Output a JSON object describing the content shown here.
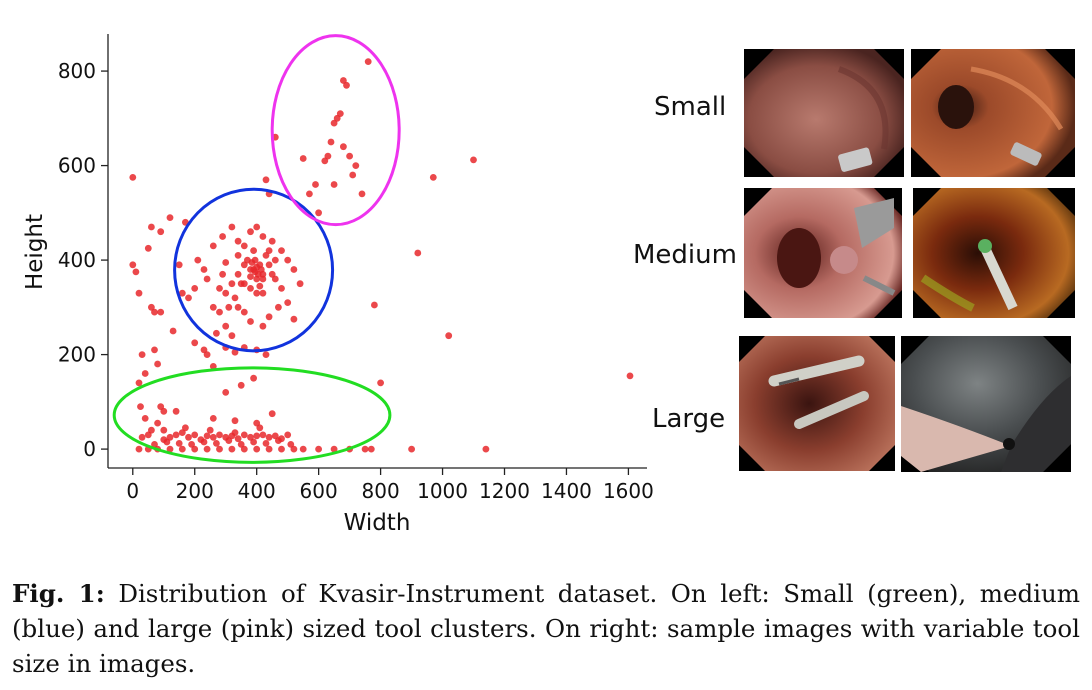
{
  "chart_data": {
    "type": "scatter",
    "xlabel": "Width",
    "ylabel": "Height",
    "xlim": [
      -80,
      1660
    ],
    "ylim": [
      -40,
      870
    ],
    "xticks": [
      0,
      200,
      400,
      600,
      800,
      1000,
      1200,
      1400,
      1600
    ],
    "yticks": [
      0,
      200,
      400,
      600,
      800
    ],
    "point_color": "#e8282b",
    "grid": false,
    "clusters": [
      {
        "color": "#22dd22",
        "center": [
          385,
          72
        ],
        "radius": [
          445,
          100
        ]
      },
      {
        "color": "#1133dd",
        "center": [
          390,
          379
        ],
        "radius": [
          255,
          171
        ]
      },
      {
        "color": "#ee33ee",
        "center": [
          655,
          675
        ],
        "radius": [
          205,
          200
        ]
      }
    ],
    "points": [
      [
        0,
        575
      ],
      [
        0,
        390
      ],
      [
        10,
        375
      ],
      [
        20,
        330
      ],
      [
        20,
        140
      ],
      [
        25,
        90
      ],
      [
        30,
        200
      ],
      [
        40,
        160
      ],
      [
        50,
        425
      ],
      [
        60,
        470
      ],
      [
        60,
        300
      ],
      [
        70,
        290
      ],
      [
        90,
        290
      ],
      [
        70,
        210
      ],
      [
        80,
        180
      ],
      [
        90,
        460
      ],
      [
        120,
        490
      ],
      [
        100,
        80
      ],
      [
        130,
        250
      ],
      [
        150,
        390
      ],
      [
        160,
        330
      ],
      [
        170,
        480
      ],
      [
        40,
        65
      ],
      [
        60,
        40
      ],
      [
        80,
        55
      ],
      [
        30,
        25
      ],
      [
        50,
        30
      ],
      [
        100,
        20
      ],
      [
        120,
        25
      ],
      [
        140,
        30
      ],
      [
        160,
        35
      ],
      [
        180,
        25
      ],
      [
        200,
        30
      ],
      [
        220,
        20
      ],
      [
        240,
        28
      ],
      [
        260,
        25
      ],
      [
        280,
        30
      ],
      [
        300,
        25
      ],
      [
        320,
        28
      ],
      [
        340,
        22
      ],
      [
        360,
        30
      ],
      [
        380,
        25
      ],
      [
        400,
        28
      ],
      [
        420,
        30
      ],
      [
        440,
        25
      ],
      [
        460,
        28
      ],
      [
        480,
        22
      ],
      [
        500,
        30
      ],
      [
        70,
        10
      ],
      [
        110,
        15
      ],
      [
        150,
        12
      ],
      [
        190,
        10
      ],
      [
        230,
        15
      ],
      [
        270,
        12
      ],
      [
        310,
        18
      ],
      [
        350,
        10
      ],
      [
        390,
        15
      ],
      [
        430,
        12
      ],
      [
        470,
        18
      ],
      [
        510,
        10
      ],
      [
        100,
        40
      ],
      [
        170,
        45
      ],
      [
        250,
        40
      ],
      [
        330,
        35
      ],
      [
        410,
        45
      ],
      [
        90,
        90
      ],
      [
        140,
        80
      ],
      [
        260,
        65
      ],
      [
        330,
        60
      ],
      [
        400,
        55
      ],
      [
        450,
        75
      ],
      [
        550,
        0
      ],
      [
        600,
        0
      ],
      [
        650,
        0
      ],
      [
        700,
        0
      ],
      [
        750,
        0
      ],
      [
        770,
        0
      ],
      [
        900,
        0
      ],
      [
        1140,
        0
      ],
      [
        520,
        0
      ],
      [
        20,
        0
      ],
      [
        50,
        0
      ],
      [
        80,
        0
      ],
      [
        120,
        0
      ],
      [
        160,
        0
      ],
      [
        200,
        0
      ],
      [
        240,
        0
      ],
      [
        280,
        0
      ],
      [
        320,
        0
      ],
      [
        360,
        0
      ],
      [
        400,
        0
      ],
      [
        440,
        0
      ],
      [
        480,
        0
      ],
      [
        230,
        210
      ],
      [
        200,
        225
      ],
      [
        240,
        200
      ],
      [
        270,
        245
      ],
      [
        300,
        215
      ],
      [
        330,
        205
      ],
      [
        360,
        215
      ],
      [
        400,
        210
      ],
      [
        430,
        200
      ],
      [
        260,
        175
      ],
      [
        390,
        150
      ],
      [
        300,
        120
      ],
      [
        350,
        135
      ],
      [
        240,
        360
      ],
      [
        260,
        300
      ],
      [
        280,
        290
      ],
      [
        300,
        260
      ],
      [
        320,
        240
      ],
      [
        340,
        300
      ],
      [
        360,
        290
      ],
      [
        380,
        270
      ],
      [
        420,
        260
      ],
      [
        440,
        280
      ],
      [
        470,
        300
      ],
      [
        520,
        275
      ],
      [
        540,
        350
      ],
      [
        180,
        320
      ],
      [
        200,
        340
      ],
      [
        210,
        400
      ],
      [
        230,
        380
      ],
      [
        260,
        430
      ],
      [
        290,
        450
      ],
      [
        320,
        470
      ],
      [
        340,
        440
      ],
      [
        360,
        430
      ],
      [
        380,
        460
      ],
      [
        400,
        470
      ],
      [
        420,
        450
      ],
      [
        450,
        440
      ],
      [
        480,
        420
      ],
      [
        500,
        400
      ],
      [
        520,
        380
      ],
      [
        500,
        310
      ],
      [
        460,
        360
      ],
      [
        300,
        330
      ],
      [
        320,
        350
      ],
      [
        340,
        370
      ],
      [
        360,
        390
      ],
      [
        380,
        380
      ],
      [
        400,
        360
      ],
      [
        410,
        345
      ],
      [
        420,
        330
      ],
      [
        430,
        410
      ],
      [
        440,
        390
      ],
      [
        450,
        370
      ],
      [
        390,
        420
      ],
      [
        370,
        400
      ],
      [
        350,
        350
      ],
      [
        330,
        320
      ],
      [
        310,
        300
      ],
      [
        280,
        340
      ],
      [
        290,
        370
      ],
      [
        300,
        395
      ],
      [
        340,
        410
      ],
      [
        360,
        350
      ],
      [
        380,
        340
      ],
      [
        400,
        330
      ],
      [
        420,
        370
      ],
      [
        440,
        420
      ],
      [
        460,
        400
      ],
      [
        480,
        340
      ],
      [
        390,
        380
      ],
      [
        395,
        375
      ],
      [
        400,
        385
      ],
      [
        405,
        370
      ],
      [
        410,
        390
      ],
      [
        385,
        395
      ],
      [
        415,
        380
      ],
      [
        380,
        365
      ],
      [
        420,
        360
      ],
      [
        395,
        400
      ],
      [
        430,
        570
      ],
      [
        440,
        540
      ],
      [
        460,
        660
      ],
      [
        550,
        615
      ],
      [
        570,
        540
      ],
      [
        590,
        560
      ],
      [
        600,
        500
      ],
      [
        620,
        610
      ],
      [
        630,
        620
      ],
      [
        640,
        650
      ],
      [
        650,
        690
      ],
      [
        660,
        700
      ],
      [
        670,
        710
      ],
      [
        680,
        780
      ],
      [
        690,
        770
      ],
      [
        700,
        620
      ],
      [
        710,
        580
      ],
      [
        720,
        600
      ],
      [
        740,
        540
      ],
      [
        760,
        820
      ],
      [
        680,
        640
      ],
      [
        650,
        560
      ],
      [
        780,
        305
      ],
      [
        800,
        140
      ],
      [
        920,
        415
      ],
      [
        970,
        575
      ],
      [
        1020,
        240
      ],
      [
        1100,
        612
      ],
      [
        1605,
        155
      ]
    ]
  },
  "panel": {
    "rows": [
      {
        "label": "Small"
      },
      {
        "label": "Medium"
      },
      {
        "label": "Large"
      }
    ]
  },
  "caption": {
    "label": "Fig. 1:",
    "text": "Distribution of Kvasir-Instrument dataset. On left: Small (green), medium (blue) and large (pink) sized tool clusters. On right: sample images with variable tool size in images."
  }
}
